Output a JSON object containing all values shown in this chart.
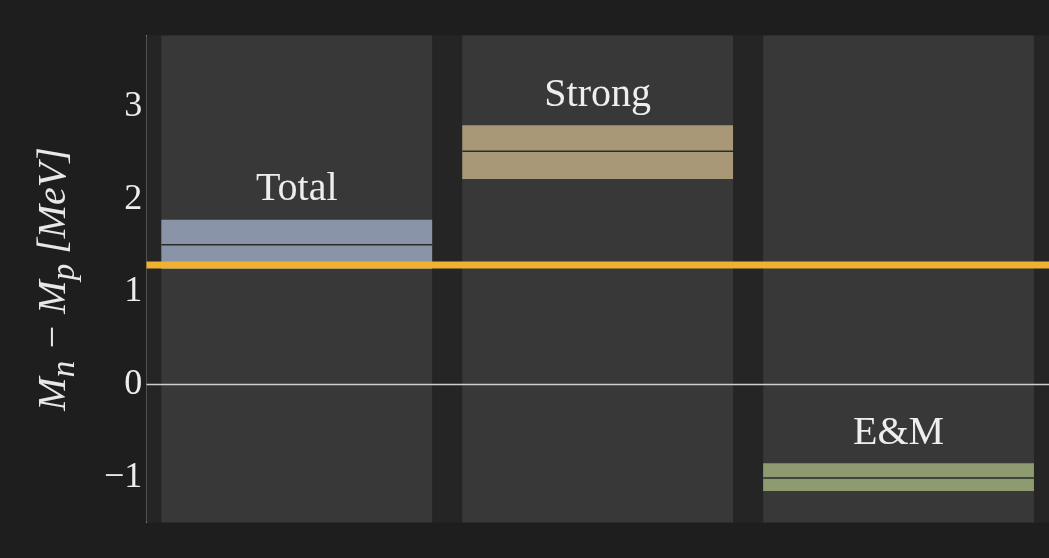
{
  "chart_data": {
    "type": "box",
    "ylabel": "M$_{n}$ − M$_{p}$  [MeV]",
    "categories": [
      null,
      null,
      null
    ],
    "boxes": [
      {
        "low": 1.25,
        "q1": 1.25,
        "median": 1.51,
        "q3": 1.78,
        "high": 1.78
      },
      {
        "low": 2.22,
        "q1": 2.22,
        "median": 2.52,
        "q3": 2.8,
        "high": 2.8
      },
      {
        "low": -1.15,
        "q1": -1.15,
        "median": -1.01,
        "q3": -0.85,
        "high": -0.85
      }
    ],
    "colors": [
      "#8a94a8",
      "#a89878",
      "#8e9a70"
    ],
    "annotations": [
      {
        "text": "Total",
        "y": 1.78
      },
      {
        "text": "Strong",
        "y": 2.8
      },
      {
        "text": "E&M",
        "y": -0.85
      }
    ],
    "ref_lines": [
      {
        "axis": "y",
        "value": 1.29,
        "color": "#f0b030"
      },
      {
        "axis": "y",
        "value": 0,
        "color": "#cfcfcf"
      }
    ],
    "ylim": [
      -1.49,
      3.77
    ],
    "yticks": [
      -1,
      0,
      1,
      2,
      3
    ],
    "tick_labels": "y"
  }
}
